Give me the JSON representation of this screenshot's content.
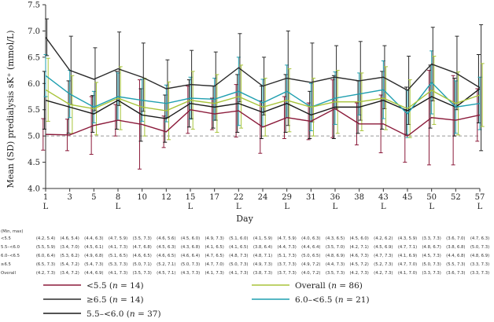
{
  "chart_data": {
    "type": "line",
    "ylabel": "Mean (SD) predialysis sK⁺ (mmol/L)",
    "xlabel": "Day",
    "ylim": [
      4.0,
      7.5
    ],
    "yticks": [
      "4.0",
      "4.5",
      "5.0",
      "5.5",
      "6.0",
      "6.5",
      "7.0",
      "7.5"
    ],
    "x": [
      1,
      3,
      5,
      8,
      10,
      12,
      15,
      17,
      22,
      24,
      29,
      31,
      36,
      38,
      43,
      45,
      50,
      52,
      57
    ],
    "x_tick_labels": [
      "1",
      "3",
      "5",
      "8",
      "10",
      "12",
      "15",
      "17",
      "22",
      "24",
      "29",
      "31",
      "36",
      "38",
      "43",
      "45",
      "50",
      "52",
      "57"
    ],
    "l_marker_days": [
      1,
      8,
      15,
      22,
      29,
      36,
      43,
      50,
      57
    ],
    "l_marker_label": "L",
    "reference_line": 5.0,
    "series": [
      {
        "name": "<5.5",
        "n": "14",
        "color": "#8b1a3a",
        "values": [
          5.03,
          5.02,
          5.2,
          5.3,
          5.22,
          5.08,
          5.5,
          5.42,
          5.48,
          5.17,
          5.35,
          5.28,
          5.52,
          5.23,
          5.23,
          5.0,
          5.35,
          5.3,
          5.4
        ],
        "sd": [
          0.3,
          0.3,
          0.55,
          0.3,
          0.85,
          0.3,
          0.45,
          0.3,
          0.5,
          0.5,
          0.4,
          0.35,
          0.55,
          0.4,
          0.55,
          0.5,
          0.9,
          0.85,
          0.5
        ]
      },
      {
        "name": "5.5–<6.0",
        "n": "37",
        "color": "#1a1a1a",
        "values": [
          5.68,
          5.55,
          5.42,
          5.68,
          5.4,
          5.33,
          5.62,
          5.55,
          5.62,
          5.45,
          5.62,
          5.4,
          5.55,
          5.55,
          5.68,
          5.48,
          5.75,
          5.55,
          5.9
        ],
        "sd": [
          0.55,
          0.5,
          0.35,
          0.55,
          0.5,
          0.45,
          0.45,
          0.4,
          0.55,
          0.5,
          0.55,
          0.45,
          0.6,
          0.5,
          0.55,
          0.45,
          0.6,
          0.55,
          0.65
        ]
      },
      {
        "name": "6.0–<6.5",
        "n": "21",
        "color": "#1f9fb0",
        "values": [
          6.15,
          5.8,
          5.55,
          5.75,
          5.68,
          5.62,
          5.72,
          5.7,
          5.85,
          5.63,
          5.85,
          5.55,
          5.72,
          5.8,
          5.88,
          5.42,
          6.02,
          5.55,
          5.62
        ],
        "sd": [
          0.4,
          0.45,
          0.3,
          0.45,
          0.4,
          0.35,
          0.4,
          0.4,
          0.65,
          0.45,
          0.5,
          0.45,
          0.5,
          0.4,
          0.55,
          0.45,
          0.6,
          0.5,
          0.5
        ]
      },
      {
        "name": "≥6.5",
        "n": "14",
        "color": "#2b2b2b",
        "values": [
          6.88,
          6.25,
          6.08,
          6.28,
          6.12,
          5.9,
          5.98,
          5.95,
          6.3,
          5.95,
          6.1,
          6.02,
          6.12,
          6.05,
          6.12,
          5.87,
          6.37,
          6.2,
          5.92
        ],
        "sd": [
          0.35,
          0.65,
          0.6,
          0.7,
          0.65,
          0.55,
          0.65,
          0.65,
          0.65,
          0.55,
          0.9,
          0.75,
          0.6,
          0.75,
          0.6,
          0.65,
          0.7,
          0.7,
          1.2
        ]
      },
      {
        "name": "Overall",
        "n": "86",
        "color": "#a8c43a",
        "values": [
          5.88,
          5.6,
          5.52,
          5.72,
          5.55,
          5.48,
          5.68,
          5.62,
          5.75,
          5.55,
          5.68,
          5.55,
          5.65,
          5.65,
          5.72,
          5.52,
          5.87,
          5.62,
          5.78
        ],
        "sd": [
          0.6,
          0.55,
          0.5,
          0.6,
          0.55,
          0.55,
          0.55,
          0.55,
          0.6,
          0.55,
          0.6,
          0.55,
          0.6,
          0.55,
          0.6,
          0.55,
          0.65,
          0.6,
          0.6
        ]
      }
    ],
    "table": {
      "header": "(Min, max)",
      "rows": [
        {
          "label": "<5.5",
          "cells": [
            "(4.2, 5.4)",
            "(4.6, 5.4)",
            "(4.4, 6.3)",
            "(4.7, 5.9)",
            "(3.5, 7.3)",
            "(4.6, 5.6)",
            "(4.5, 6.0)",
            "(4.9, 7.3)",
            "(5.1, 6.0)",
            "(4.1, 5.9)",
            "(4.7, 5.9)",
            "(4.0, 6.3)",
            "(4.3, 6.5)",
            "(4.5, 6.0)",
            "(4.2, 6.2)",
            "(4.3, 5.9)",
            "(3.3, 7.3)",
            "(3.6, 7.0)",
            "(4.7, 6.3)"
          ]
        },
        {
          "label": "5.5–<6.0",
          "cells": [
            "(5.5, 5.9)",
            "(3.4, 7.0)",
            "(4.5, 6.1)",
            "(4.1, 7.3)",
            "(4.7, 6.8)",
            "(4.5, 6.3)",
            "(4.3, 6.8)",
            "(4.1, 6.5)",
            "(4.1, 6.5)",
            "(3.8, 6.4)",
            "(4.4, 7.3)",
            "(4.4, 6.4)",
            "(3.5, 7.0)",
            "(4.2, 7.1)",
            "(4.5, 6.9)",
            "(4.7, 7.1)",
            "(4.8, 6.7)",
            "(3.8, 6.8)",
            "(5.0, 7.3)"
          ]
        },
        {
          "label": "6.0–<6.5",
          "cells": [
            "(6.0, 6.4)",
            "(5.3, 6.2)",
            "(4.9, 6.8)",
            "(5.1, 6.5)",
            "(4.6, 6.5)",
            "(4.6, 6.5)",
            "(4.6, 6.4)",
            "(4.7, 6.5)",
            "(4.8, 7.3)",
            "(4.8, 7.1)",
            "(5.1, 7.3)",
            "(5.0, 6.5)",
            "(4.8, 6.9)",
            "(4.6, 7.3)",
            "(4.7, 7.3)",
            "(4.1, 6.9)",
            "(4.5, 7.3)",
            "(4.4, 6.8)",
            "(4.8, 6.9)"
          ]
        },
        {
          "label": "≥6.5",
          "cells": [
            "(6.5, 7.3)",
            "(5.4, 7.2)",
            "(5.4, 7.3)",
            "(5.3, 7.3)",
            "(5.0, 7.1)",
            "(5.2, 7.1)",
            "(5.0, 7.3)",
            "(4.7, 7.0)",
            "(5.0, 7.3)",
            "(4.9, 7.3)",
            "(3.7, 7.3)",
            "(4.9, 7.2)",
            "(4.4, 7.3)",
            "(4.5, 7.2)",
            "(5.2, 7.3)",
            "(4.7, 7.0)",
            "(5.0, 7.3)",
            "(5.5, 7.3)",
            "(3.3, 7.3)"
          ]
        },
        {
          "label": "Overall",
          "cells": [
            "(4.2, 7.3)",
            "(3.4, 7.2)",
            "(4.4, 6.9)",
            "(4.1, 7.3)",
            "(3.5, 7.3)",
            "(4.5, 7.1)",
            "(4.3, 7.3)",
            "(4.1, 7.3)",
            "(4.1, 7.3)",
            "(3.8, 7.3)",
            "(3.7, 7.3)",
            "(4.0, 7.2)",
            "(3.5, 7.3)",
            "(4.2, 7.3)",
            "(4.2, 7.3)",
            "(4.1, 7.0)",
            "(3.3, 7.3)",
            "(3.6, 7.3)",
            "(3.3, 7.3)"
          ]
        }
      ]
    },
    "legend": [
      {
        "series": 0,
        "label": "<5.5",
        "n": "14"
      },
      {
        "series": 4,
        "label": "Overall",
        "n": "86"
      },
      {
        "series": 3,
        "label": "≥6.5",
        "n": "14"
      },
      {
        "series": 2,
        "label": "6.0–<6.5",
        "n": "21"
      },
      {
        "series": 1,
        "label": "5.5–<6.0",
        "n": "37"
      }
    ]
  }
}
